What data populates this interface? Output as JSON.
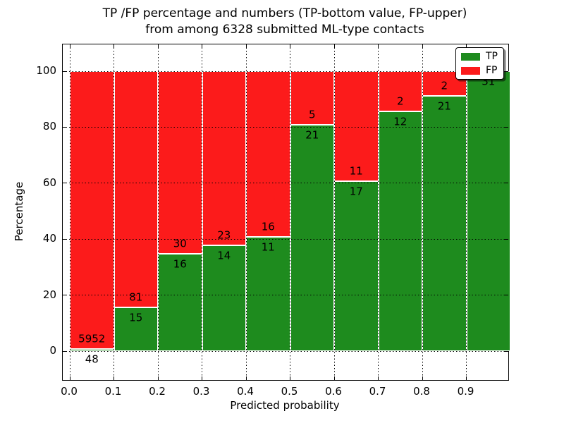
{
  "chart_data": {
    "type": "bar",
    "variant": "stacked-percentage",
    "title_line1": "TP /FP percentage and numbers (TP-bottom value, FP-upper)",
    "title_line2": "from among 6328 submitted ML-type contacts",
    "xlabel": "Predicted probability",
    "ylabel": "Percentage",
    "total_submitted": 6328,
    "categories": [
      "0.0-0.1",
      "0.1-0.2",
      "0.2-0.3",
      "0.3-0.4",
      "0.4-0.5",
      "0.5-0.6",
      "0.6-0.7",
      "0.7-0.8",
      "0.8-0.9",
      "0.9-1.0"
    ],
    "x_ticks": [
      0.0,
      0.1,
      0.2,
      0.3,
      0.4,
      0.5,
      0.6,
      0.7,
      0.8,
      0.9
    ],
    "x_tick_labels": [
      "0.0",
      "0.1",
      "0.2",
      "0.3",
      "0.4",
      "0.5",
      "0.6",
      "0.7",
      "0.8",
      "0.9"
    ],
    "y_ticks": [
      0,
      20,
      40,
      60,
      80,
      100
    ],
    "y_tick_labels": [
      "0",
      "20",
      "40",
      "60",
      "80",
      "100"
    ],
    "ylim": [
      -10.5,
      109.8
    ],
    "grid": "dotted",
    "legend": {
      "position": "upper-right",
      "entries": [
        "TP",
        "FP"
      ]
    },
    "series": [
      {
        "name": "TP",
        "color": "#1e8b1e",
        "counts": [
          48,
          15,
          16,
          14,
          11,
          21,
          17,
          12,
          21,
          31
        ]
      },
      {
        "name": "FP",
        "color": "#fc1b1b",
        "counts": [
          5952,
          81,
          30,
          23,
          16,
          5,
          11,
          2,
          2,
          0
        ]
      }
    ],
    "tp_percent": [
      0.8,
      15.6,
      34.8,
      37.8,
      40.7,
      80.8,
      60.7,
      85.7,
      91.3,
      100.0
    ],
    "frame_color": "#000000",
    "background": "#ffffff"
  }
}
